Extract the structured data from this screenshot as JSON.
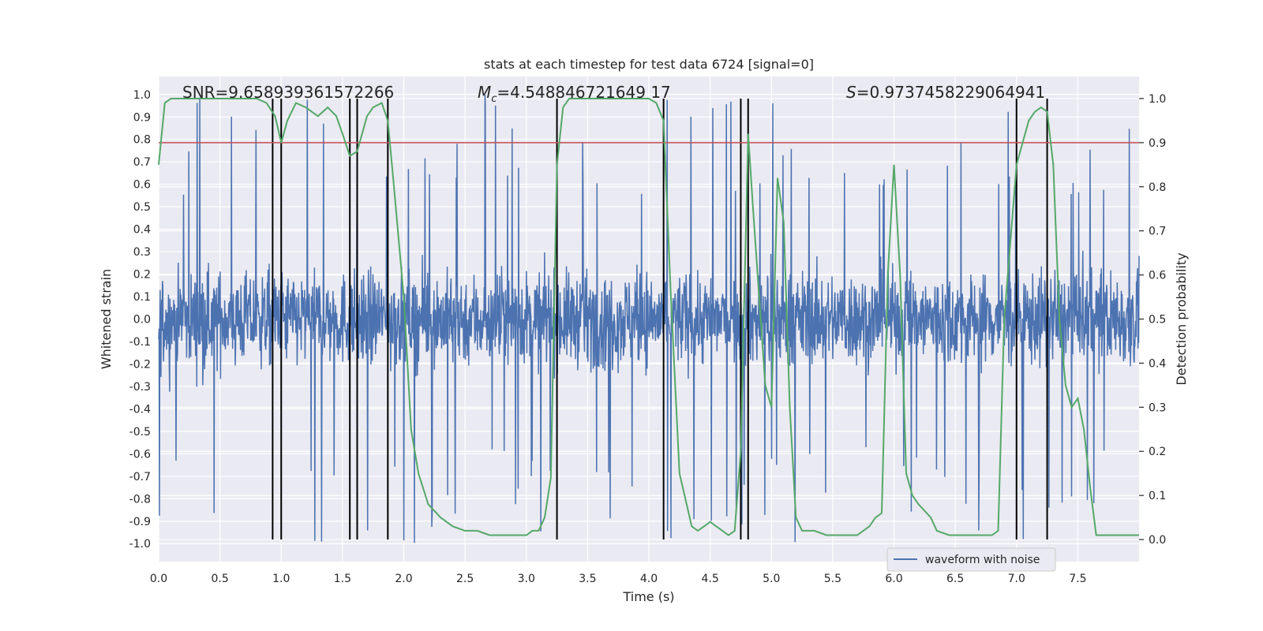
{
  "chart_data": {
    "type": "line",
    "title": "stats at each timestep for test data 6724 [signal=0]",
    "xlabel": "Time (s)",
    "ylabel": "Whitened strain",
    "y2label": "Detection probability",
    "xlim": [
      0.0,
      8.0
    ],
    "ylim": [
      -1.08,
      1.08
    ],
    "y2lim": [
      -0.05,
      1.05
    ],
    "x_ticks": [
      "0.0",
      "0.5",
      "1.0",
      "1.5",
      "2.0",
      "2.5",
      "3.0",
      "3.5",
      "4.0",
      "4.5",
      "5.0",
      "5.5",
      "6.0",
      "6.5",
      "7.0",
      "7.5"
    ],
    "y_ticks": [
      "1.0",
      "0.9",
      "0.8",
      "0.7",
      "0.6",
      "0.5",
      "0.4",
      "0.3",
      "0.2",
      "0.1",
      "0.0",
      "-0.1",
      "-0.2",
      "-0.3",
      "-0.4",
      "-0.5",
      "-0.6",
      "-0.7",
      "-0.8",
      "-0.9",
      "-1.0"
    ],
    "y2_ticks": [
      "1.0",
      "0.9",
      "0.8",
      "0.7",
      "0.6",
      "0.5",
      "0.4",
      "0.3",
      "0.2",
      "0.1",
      "0.0"
    ],
    "annotations": {
      "snr": "SNR=9.658939361572266",
      "mc_symbol": "M",
      "mc_sub": "c",
      "mc_value": "=4.548846721649 17",
      "s_symbol": "S",
      "s_value": "=0.9737458229064941"
    },
    "legend": {
      "label": "waveform with noise",
      "position": "lower-right"
    },
    "threshold": {
      "value": 0.9,
      "axis": "right",
      "color": "#c44e52"
    },
    "detection_boundaries": [
      0.93,
      1.0,
      1.56,
      1.62,
      1.87,
      3.25,
      4.12,
      4.75,
      4.81,
      7.0,
      7.25
    ],
    "series": [
      {
        "name": "waveform with noise",
        "axis": "left",
        "color": "#4c72b0",
        "description": "whitened strain noise, dense oscillation between about -0.4 and 0.4 with spikes to ±1.0"
      },
      {
        "name": "detection probability",
        "axis": "right",
        "color": "#55a868",
        "x": [
          0.0,
          0.05,
          0.1,
          0.2,
          0.3,
          0.4,
          0.5,
          0.6,
          0.7,
          0.8,
          0.88,
          0.95,
          1.0,
          1.05,
          1.12,
          1.2,
          1.3,
          1.38,
          1.45,
          1.5,
          1.56,
          1.62,
          1.7,
          1.75,
          1.82,
          1.87,
          1.92,
          2.0,
          2.06,
          2.12,
          2.2,
          2.3,
          2.4,
          2.5,
          2.6,
          2.7,
          2.8,
          3.0,
          3.05,
          3.1,
          3.15,
          3.2,
          3.25,
          3.3,
          3.35,
          3.45,
          3.6,
          3.8,
          4.0,
          4.06,
          4.12,
          4.18,
          4.25,
          4.35,
          4.4,
          4.45,
          4.5,
          4.55,
          4.6,
          4.65,
          4.7,
          4.75,
          4.81,
          4.85,
          4.9,
          4.95,
          5.0,
          5.05,
          5.1,
          5.15,
          5.2,
          5.25,
          5.3,
          5.35,
          5.45,
          5.6,
          5.7,
          5.75,
          5.8,
          5.85,
          5.9,
          5.95,
          6.0,
          6.05,
          6.1,
          6.15,
          6.2,
          6.3,
          6.35,
          6.45,
          6.55,
          6.7,
          6.8,
          6.85,
          6.9,
          7.0,
          7.05,
          7.1,
          7.15,
          7.2,
          7.25,
          7.3,
          7.35,
          7.4,
          7.45,
          7.5,
          7.55,
          7.6,
          7.65,
          7.7,
          7.8,
          8.0
        ],
        "values": [
          0.85,
          0.99,
          1.0,
          1.0,
          1.0,
          1.0,
          1.0,
          1.0,
          1.0,
          1.0,
          0.99,
          0.96,
          0.9,
          0.95,
          0.99,
          0.98,
          0.96,
          0.98,
          0.96,
          0.92,
          0.87,
          0.88,
          0.96,
          0.98,
          0.99,
          0.95,
          0.8,
          0.55,
          0.25,
          0.15,
          0.08,
          0.05,
          0.03,
          0.02,
          0.02,
          0.01,
          0.01,
          0.01,
          0.02,
          0.02,
          0.05,
          0.14,
          0.85,
          0.98,
          1.0,
          1.0,
          1.0,
          1.0,
          1.0,
          0.99,
          0.95,
          0.55,
          0.15,
          0.03,
          0.02,
          0.03,
          0.04,
          0.03,
          0.02,
          0.01,
          0.02,
          0.2,
          0.92,
          0.75,
          0.55,
          0.35,
          0.3,
          0.82,
          0.72,
          0.3,
          0.05,
          0.02,
          0.02,
          0.02,
          0.01,
          0.01,
          0.01,
          0.02,
          0.03,
          0.05,
          0.06,
          0.6,
          0.85,
          0.6,
          0.15,
          0.1,
          0.08,
          0.05,
          0.02,
          0.01,
          0.01,
          0.01,
          0.01,
          0.02,
          0.5,
          0.85,
          0.9,
          0.95,
          0.97,
          0.98,
          0.97,
          0.85,
          0.5,
          0.35,
          0.3,
          0.32,
          0.25,
          0.12,
          0.01,
          0.01,
          0.01,
          0.01
        ]
      }
    ]
  }
}
